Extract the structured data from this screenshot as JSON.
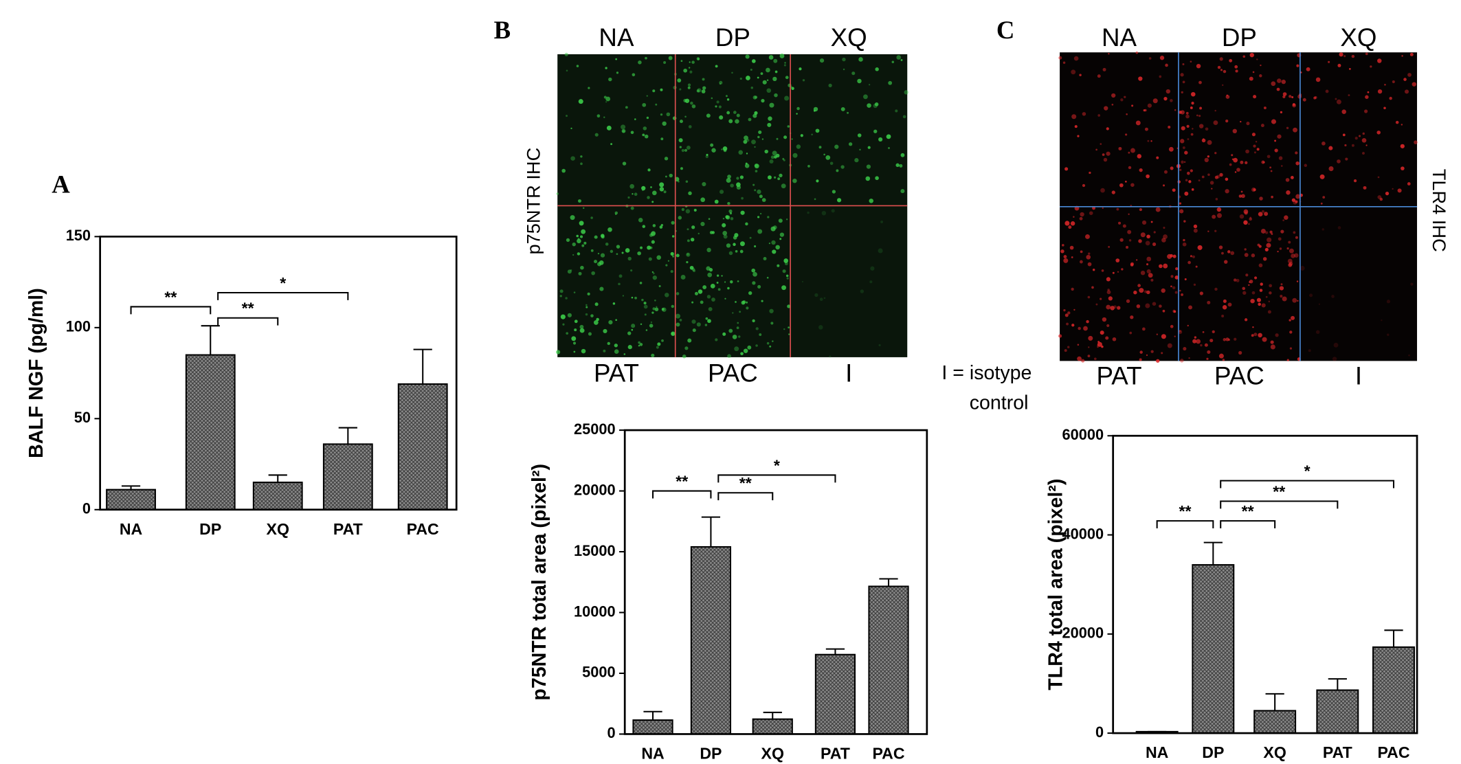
{
  "chart_data": [
    {
      "type": "bar",
      "panel_label": "A",
      "ylabel": "BALF NGF (pg/ml)",
      "categories": [
        "NA",
        "DP",
        "XQ",
        "PAT",
        "PAC"
      ],
      "values": [
        11,
        85,
        15,
        36,
        69
      ],
      "errors": [
        2,
        16,
        4,
        9,
        19
      ],
      "color": "#8c8c8c",
      "ylim": [
        0,
        150
      ],
      "yticks": [
        0,
        50,
        100,
        150
      ],
      "significance": [
        {
          "groups": [
            "NA",
            "DP"
          ],
          "label": "**"
        },
        {
          "groups": [
            "DP",
            "XQ"
          ],
          "label": "**"
        },
        {
          "groups": [
            "DP",
            "PAT"
          ],
          "label": "*"
        }
      ]
    },
    {
      "type": "bar",
      "panel_label": "B",
      "ylabel": "p75NTR total area (pixel²)",
      "categories": [
        "NA",
        "DP",
        "XQ",
        "PAT",
        "PAC"
      ],
      "values": [
        1150,
        15400,
        1230,
        6540,
        12150
      ],
      "errors": [
        700,
        2450,
        550,
        460,
        620
      ],
      "color": "#8c8c8c",
      "ylim": [
        0,
        25000
      ],
      "yticks": [
        0,
        5000,
        10000,
        15000,
        20000,
        25000
      ],
      "significance": [
        {
          "groups": [
            "NA",
            "DP"
          ],
          "label": "**"
        },
        {
          "groups": [
            "DP",
            "XQ"
          ],
          "label": "**"
        },
        {
          "groups": [
            "DP",
            "PAT"
          ],
          "label": "*"
        }
      ]
    },
    {
      "type": "bar",
      "panel_label": "C",
      "ylabel": "TLR4 total area (pixel²)",
      "categories": [
        "NA",
        "DP",
        "XQ",
        "PAT",
        "PAC"
      ],
      "values": [
        300,
        33960,
        4530,
        8680,
        17360
      ],
      "errors": [
        0,
        4500,
        3400,
        2260,
        3400
      ],
      "color": "#8c8c8c",
      "ylim": [
        0,
        60000
      ],
      "yticks": [
        0,
        20000,
        40000,
        60000
      ],
      "significance": [
        {
          "groups": [
            "NA",
            "DP"
          ],
          "label": "**"
        },
        {
          "groups": [
            "DP",
            "XQ"
          ],
          "label": "**"
        },
        {
          "groups": [
            "DP",
            "PAT"
          ],
          "label": "**"
        },
        {
          "groups": [
            "DP",
            "PAC"
          ],
          "label": "*"
        }
      ]
    }
  ],
  "micrographs": [
    {
      "side_label": "p75NTR IHC",
      "top_labels": [
        "NA",
        "DP",
        "XQ"
      ],
      "bottom_labels": [
        "PAT",
        "PAC",
        "I"
      ],
      "color": "#3ccf4a",
      "divider_color": "#e05050"
    },
    {
      "side_label": "TLR4 IHC",
      "top_labels": [
        "NA",
        "DP",
        "XQ"
      ],
      "bottom_labels": [
        "PAT",
        "PAC",
        "I"
      ],
      "color": "#e0282a",
      "divider_color": "#4a8ad8"
    }
  ],
  "isotype_note": [
    "I = isotype",
    "control"
  ]
}
